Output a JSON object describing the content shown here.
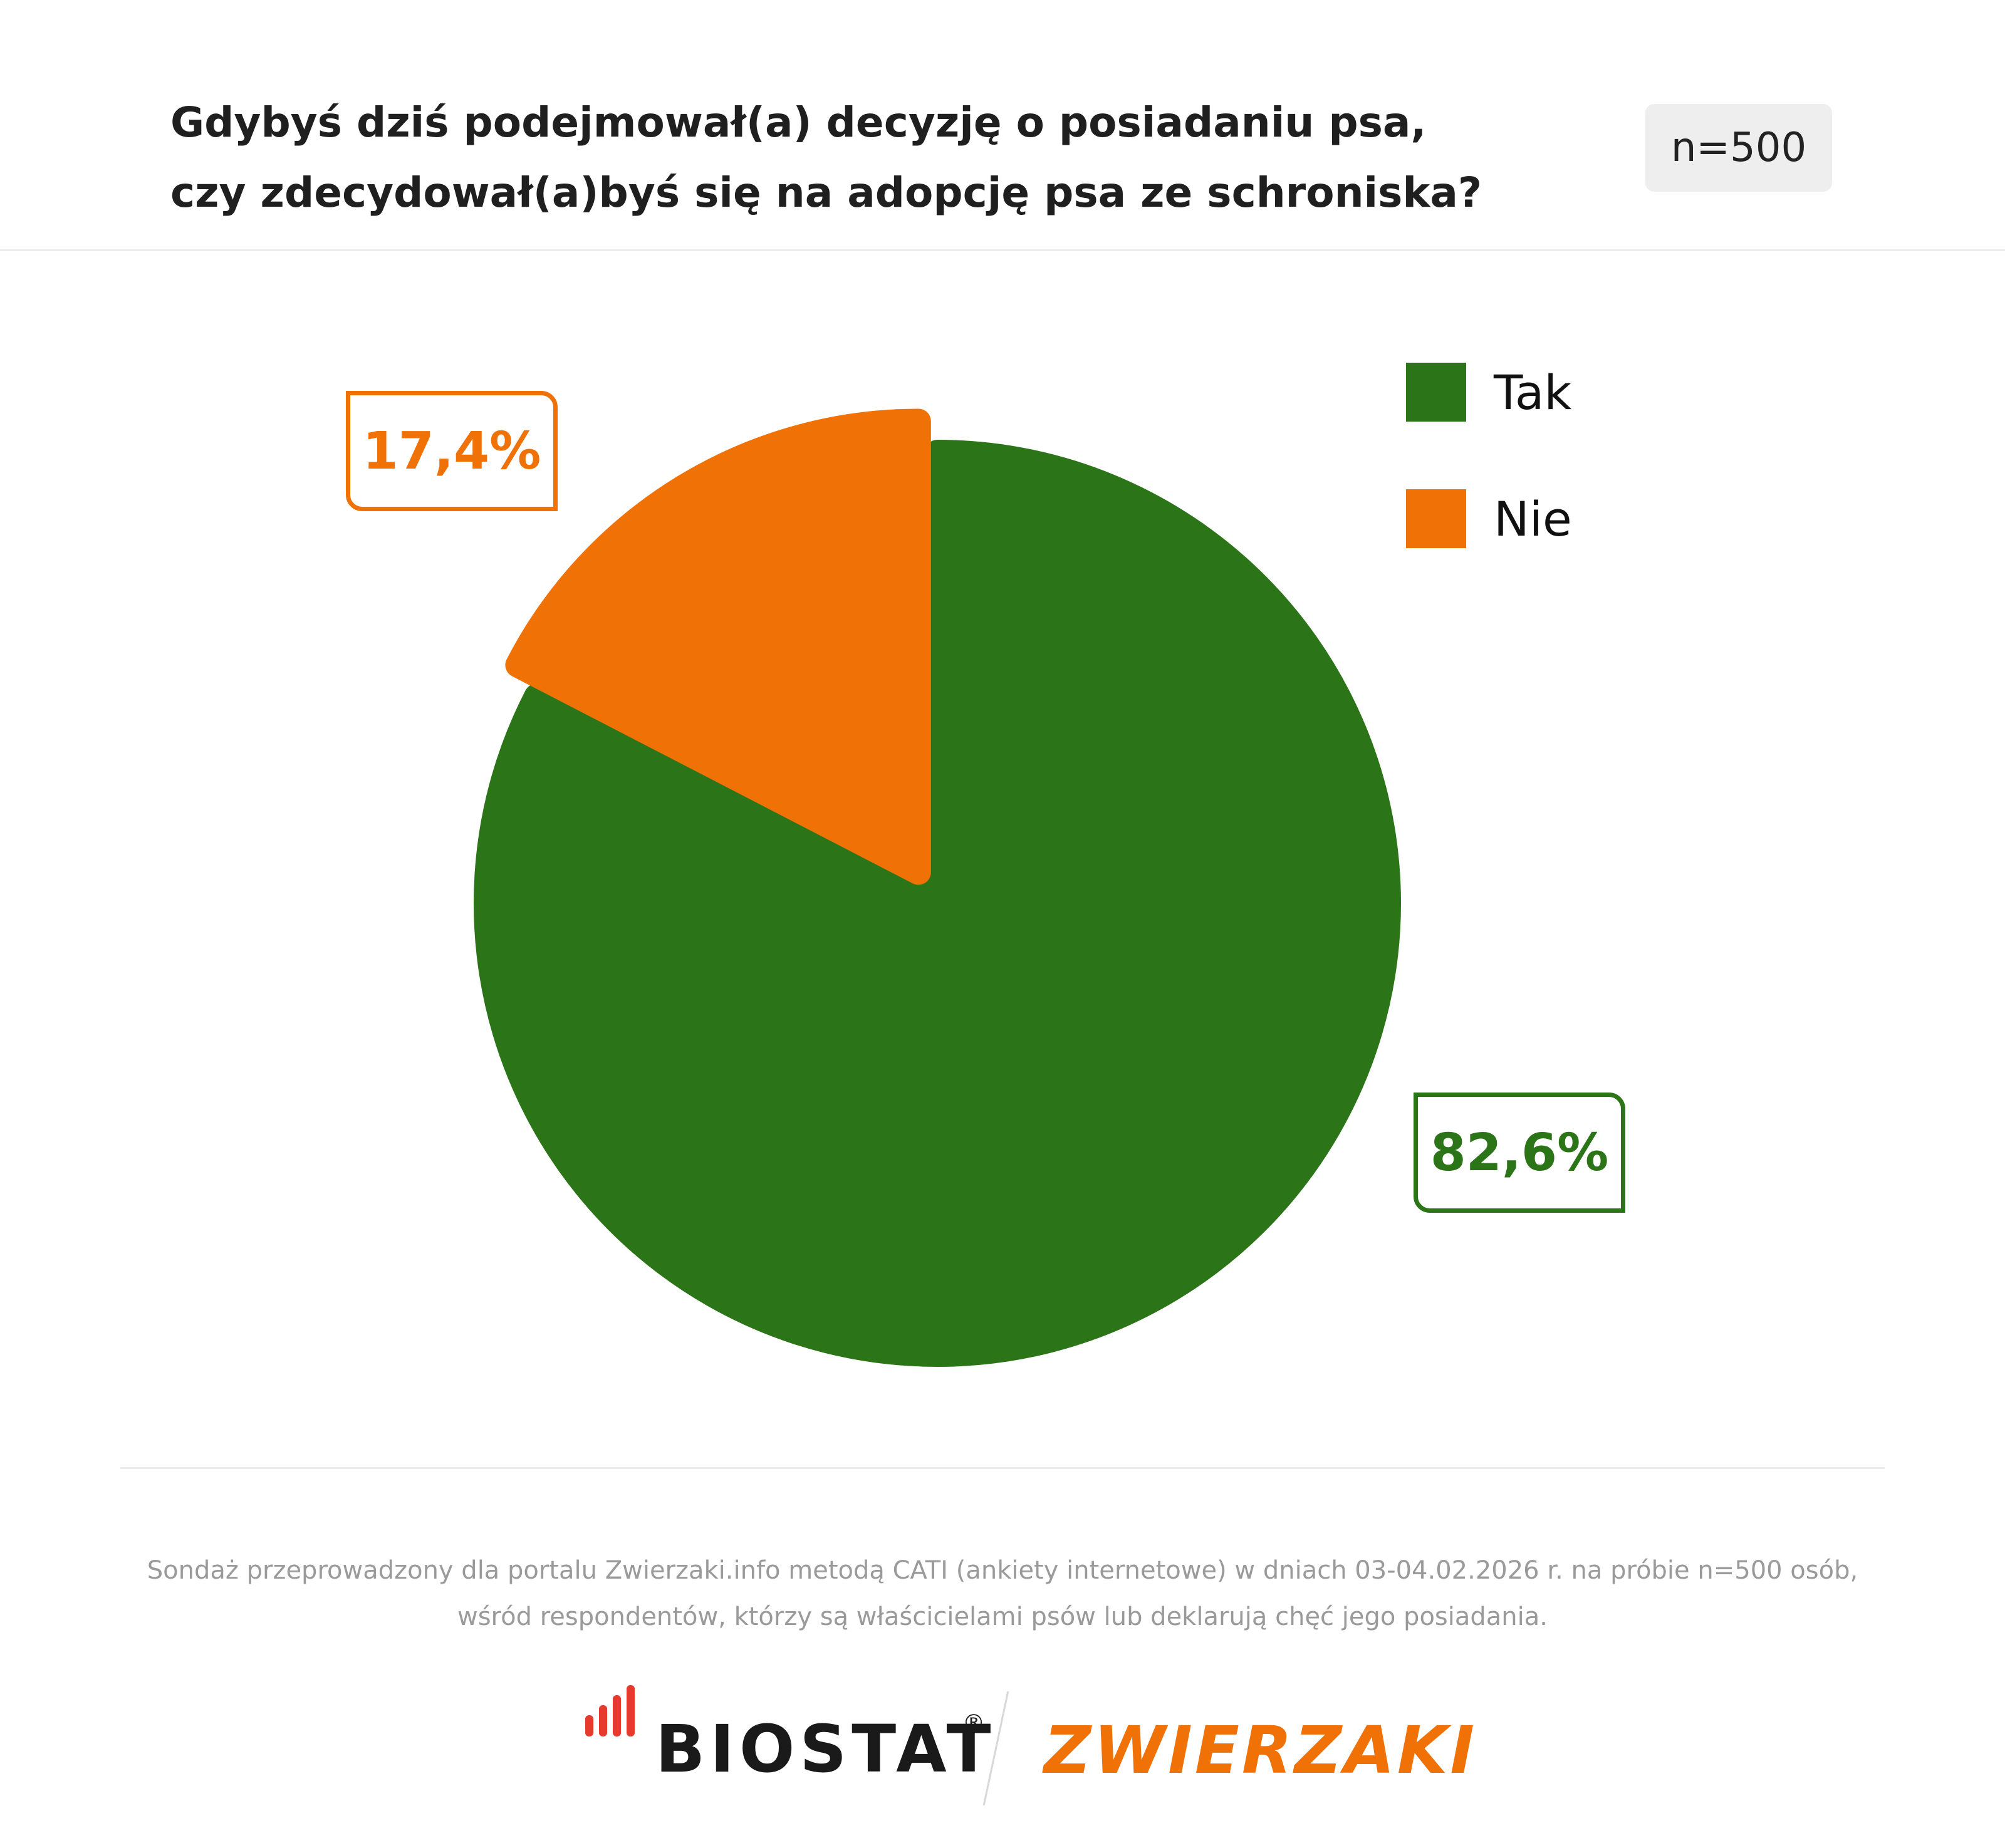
{
  "header": {
    "title_line1": "Gdybyś dziś podejmował(a) decyzję o posiadaniu psa,",
    "title_line2": "czy zdecydował(a)byś się na adopcję psa ze schroniska?",
    "sample_badge": "n=500"
  },
  "chart_data": {
    "type": "pie",
    "title": "Gdybyś dziś podejmował(a) decyzję o posiadaniu psa, czy zdecydował(a)byś się na adopcję psa ze schroniska?",
    "legend_position": "top-right",
    "slices": [
      {
        "label": "Tak",
        "value": 82.6,
        "value_label": "82,6%",
        "color": "#2b7418",
        "exploded": false
      },
      {
        "label": "Nie",
        "value": 17.4,
        "value_label": "17,4%",
        "color": "#f07106",
        "exploded": true
      }
    ]
  },
  "footnote": {
    "line1": "Sondaż przeprowadzony dla portalu Zwierzaki.info metodą CATI (ankiety internetowe) w dniach 03-04.02.2026 r. na próbie n=500 osób,",
    "line2": "wśród respondentów, którzy są właścicielami psów lub deklarują chęć jego posiadania."
  },
  "logos": {
    "biostat": "BIOSTAT",
    "biostat_mark": "®",
    "zwierzaki": "ZWIERZAKI"
  }
}
